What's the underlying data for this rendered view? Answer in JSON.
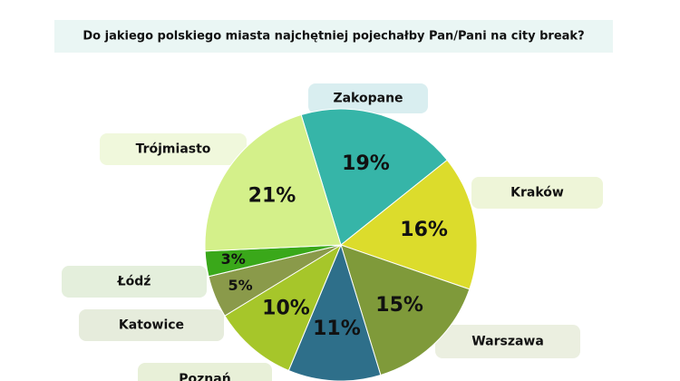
{
  "chart_data": {
    "type": "pie",
    "title": "Do jakiego polskiego miasta najchętniej pojechałby Pan/Pani na city break?",
    "categories": [
      "Zakopane",
      "Kraków",
      "Warszawa",
      null,
      "Poznań",
      "Katowice",
      "Łódź",
      "Trójmiasto"
    ],
    "values": [
      19,
      16,
      15,
      11,
      10,
      5,
      3,
      21
    ],
    "value_labels": [
      "19%",
      "16%",
      "15%",
      "11%",
      "10%",
      "5%",
      "3%",
      "21%"
    ],
    "colors": [
      "#36b5a8",
      "#dcdc2c",
      "#7f9a3a",
      "#2e6f8a",
      "#a6c62a",
      "#8a9a4a",
      "#3aa81a",
      "#d4f08a"
    ]
  }
}
